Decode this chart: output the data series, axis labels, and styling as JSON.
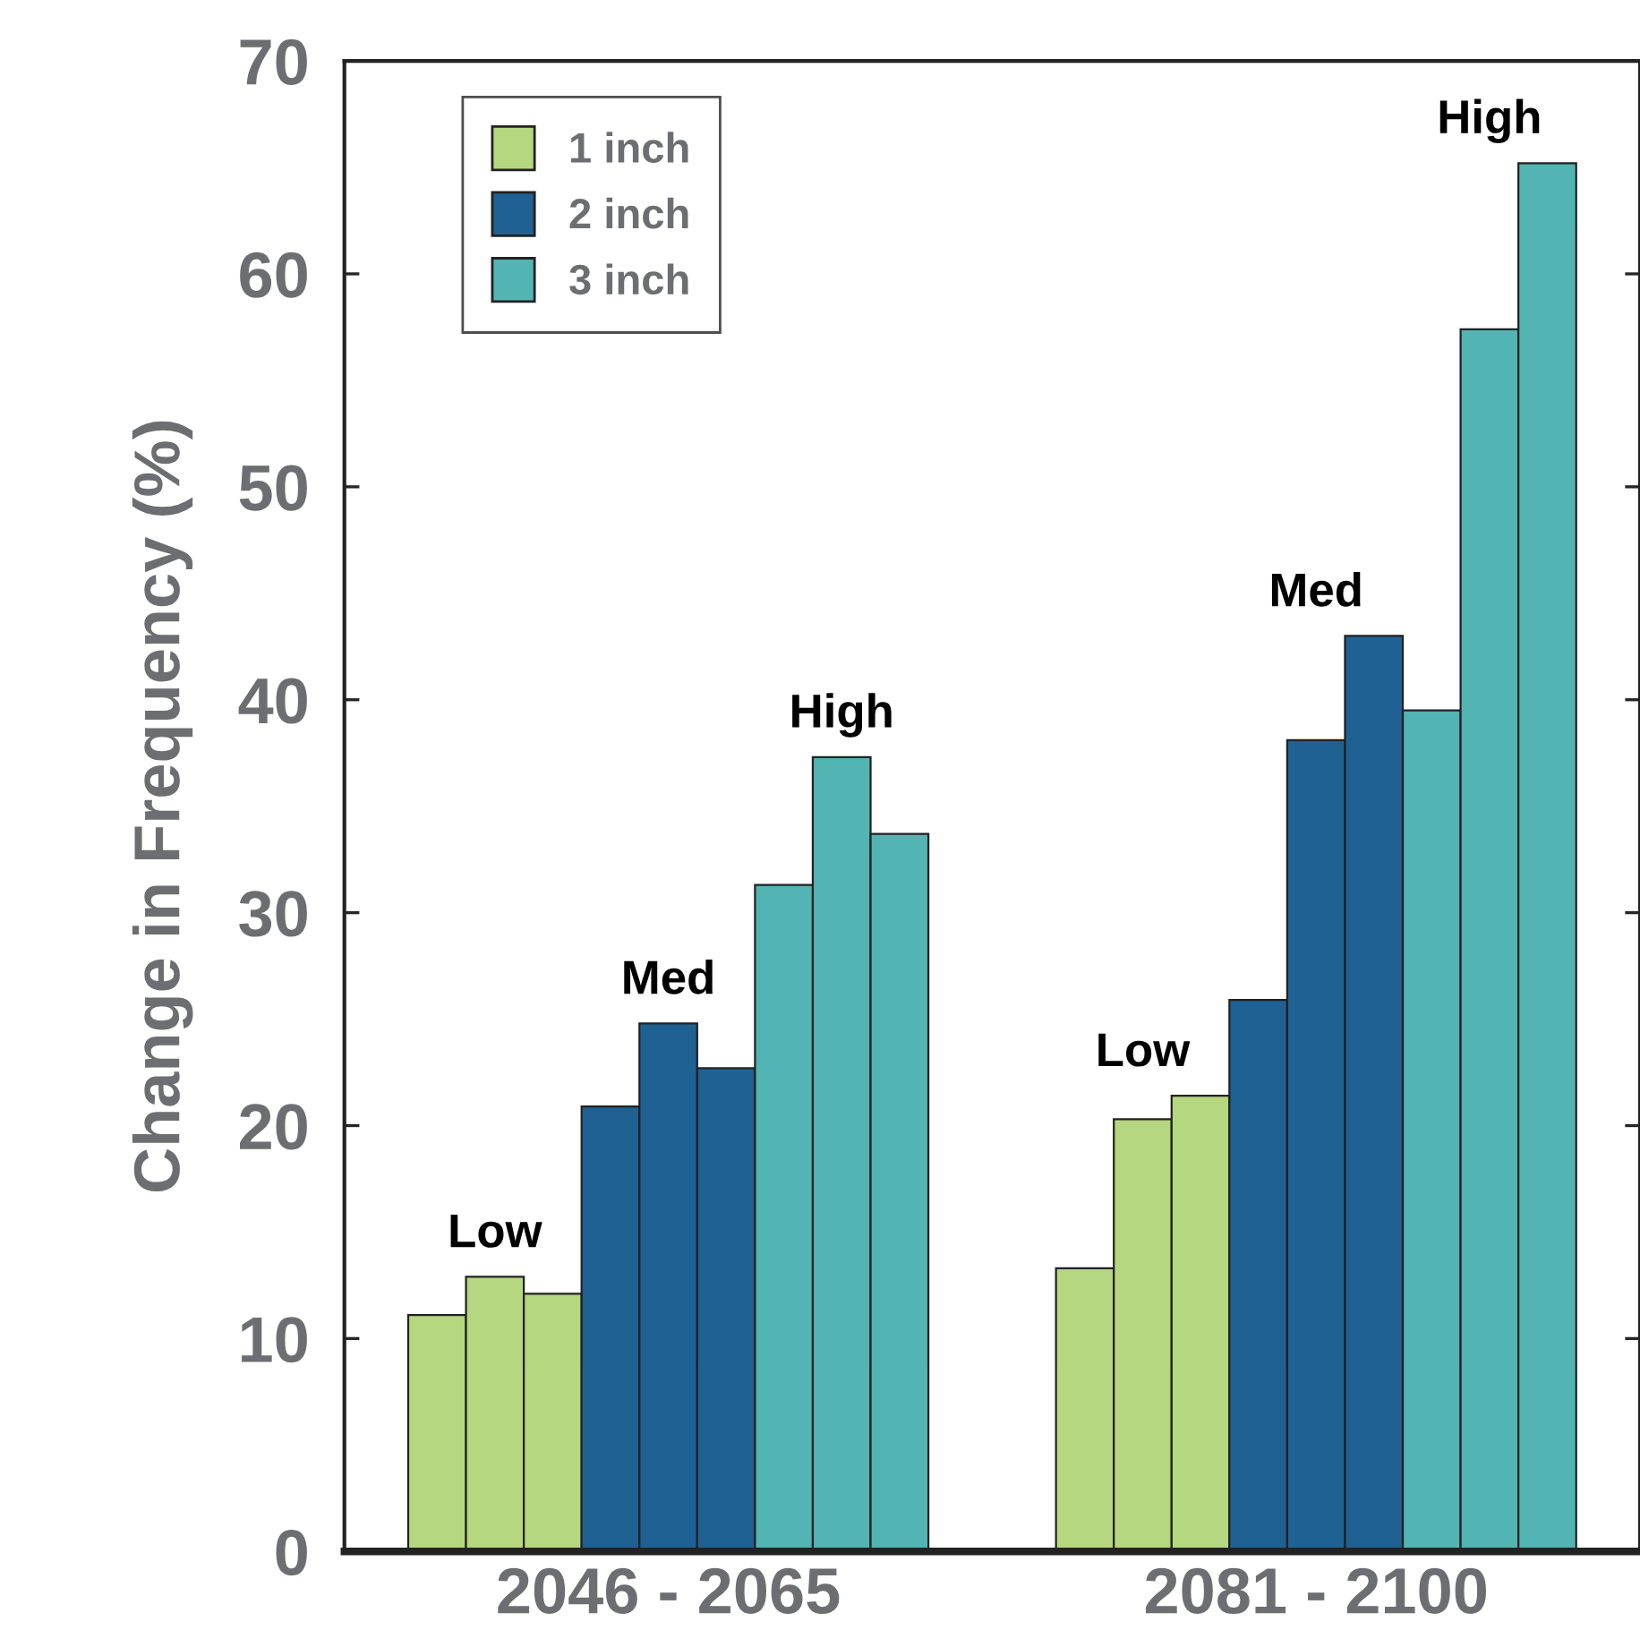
{
  "chart_data": {
    "type": "bar",
    "ylabel": "Change in Frequency (%)",
    "categories": [
      "2046 - 2065",
      "2081 - 2100"
    ],
    "series": [
      {
        "name": "1 inch",
        "color": "#b5d77f",
        "values": [
          11.1,
          13.3
        ]
      },
      {
        "color": "#b5d77f",
        "values": [
          12.9,
          20.3
        ]
      },
      {
        "color": "#b5d77f",
        "values": [
          12.1,
          21.4
        ]
      },
      {
        "name": "2 inch",
        "color": "#1f6193",
        "values": [
          20.9,
          25.9
        ]
      },
      {
        "color": "#1f6193",
        "values": [
          24.8,
          38.1
        ]
      },
      {
        "color": "#1f6193",
        "values": [
          22.7,
          43.0
        ]
      },
      {
        "name": "3 inch",
        "color": "#52b4b3",
        "values": [
          31.3,
          39.5
        ]
      },
      {
        "color": "#52b4b3",
        "values": [
          37.3,
          57.4
        ]
      },
      {
        "color": "#52b4b3",
        "values": [
          33.7,
          65.2
        ]
      }
    ],
    "annotations": [
      "Low",
      "Med",
      "High",
      "Low",
      "Med",
      "High"
    ],
    "ylim": [
      0,
      70
    ],
    "yticks": [
      0,
      10,
      20,
      30,
      40,
      50,
      60,
      70
    ],
    "legend": "top left",
    "grid": false
  }
}
